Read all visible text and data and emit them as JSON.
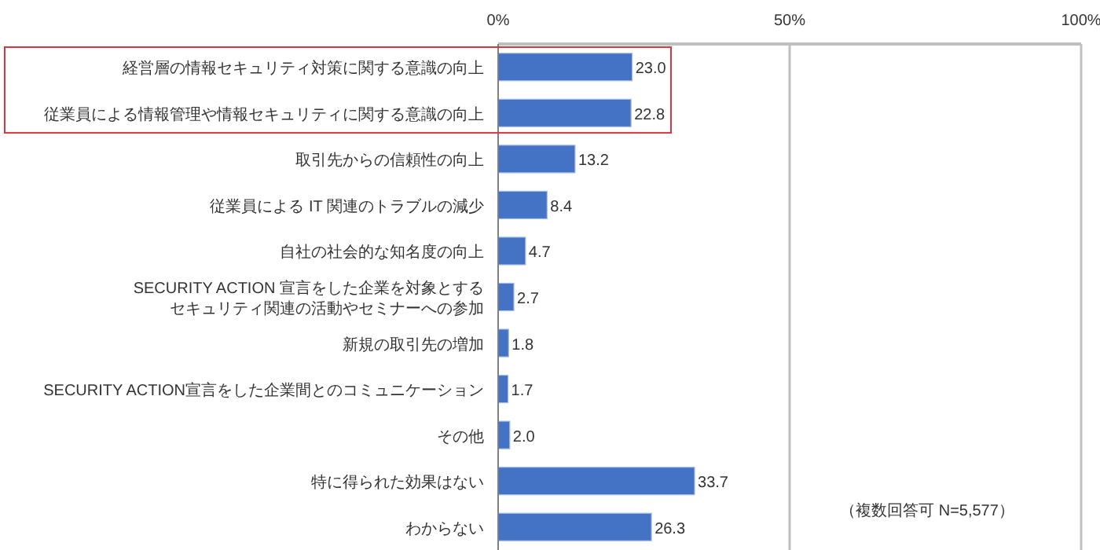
{
  "chart_data": {
    "type": "bar",
    "orientation": "horizontal",
    "categories": [
      "経営層の情報セキュリティ対策に関する意識の向上",
      "従業員による情報管理や情報セキュリティに関する意識の向上",
      "取引先からの信頼性の向上",
      "従業員による IT 関連のトラブルの減少",
      "自社の社会的な知名度の向上",
      "SECURITY ACTION 宣言をした企業を対象とするセキュリティ関連の活動やセミナーへの参加",
      "新規の取引先の増加",
      "SECURITY ACTION宣言をした企業間とのコミュニケーション",
      "その他",
      "特に得られた効果はない",
      "わからない"
    ],
    "values": [
      23.0,
      22.8,
      13.2,
      8.4,
      4.7,
      2.7,
      1.8,
      1.7,
      2.0,
      33.7,
      26.3
    ],
    "value_labels": [
      "23.0",
      "22.8",
      "13.2",
      "8.4",
      "4.7",
      "2.7",
      "1.8",
      "1.7",
      "2.0",
      "33.7",
      "26.3"
    ],
    "color": "#4472c4",
    "xlim": [
      0,
      100
    ],
    "xticks": [
      {
        "value": 0,
        "label": "0%"
      },
      {
        "value": 50,
        "label": "50%"
      },
      {
        "value": 100,
        "label": "100%"
      }
    ],
    "grid": "x",
    "annotations": [
      "（複数回答可 N=5,577）"
    ]
  }
}
